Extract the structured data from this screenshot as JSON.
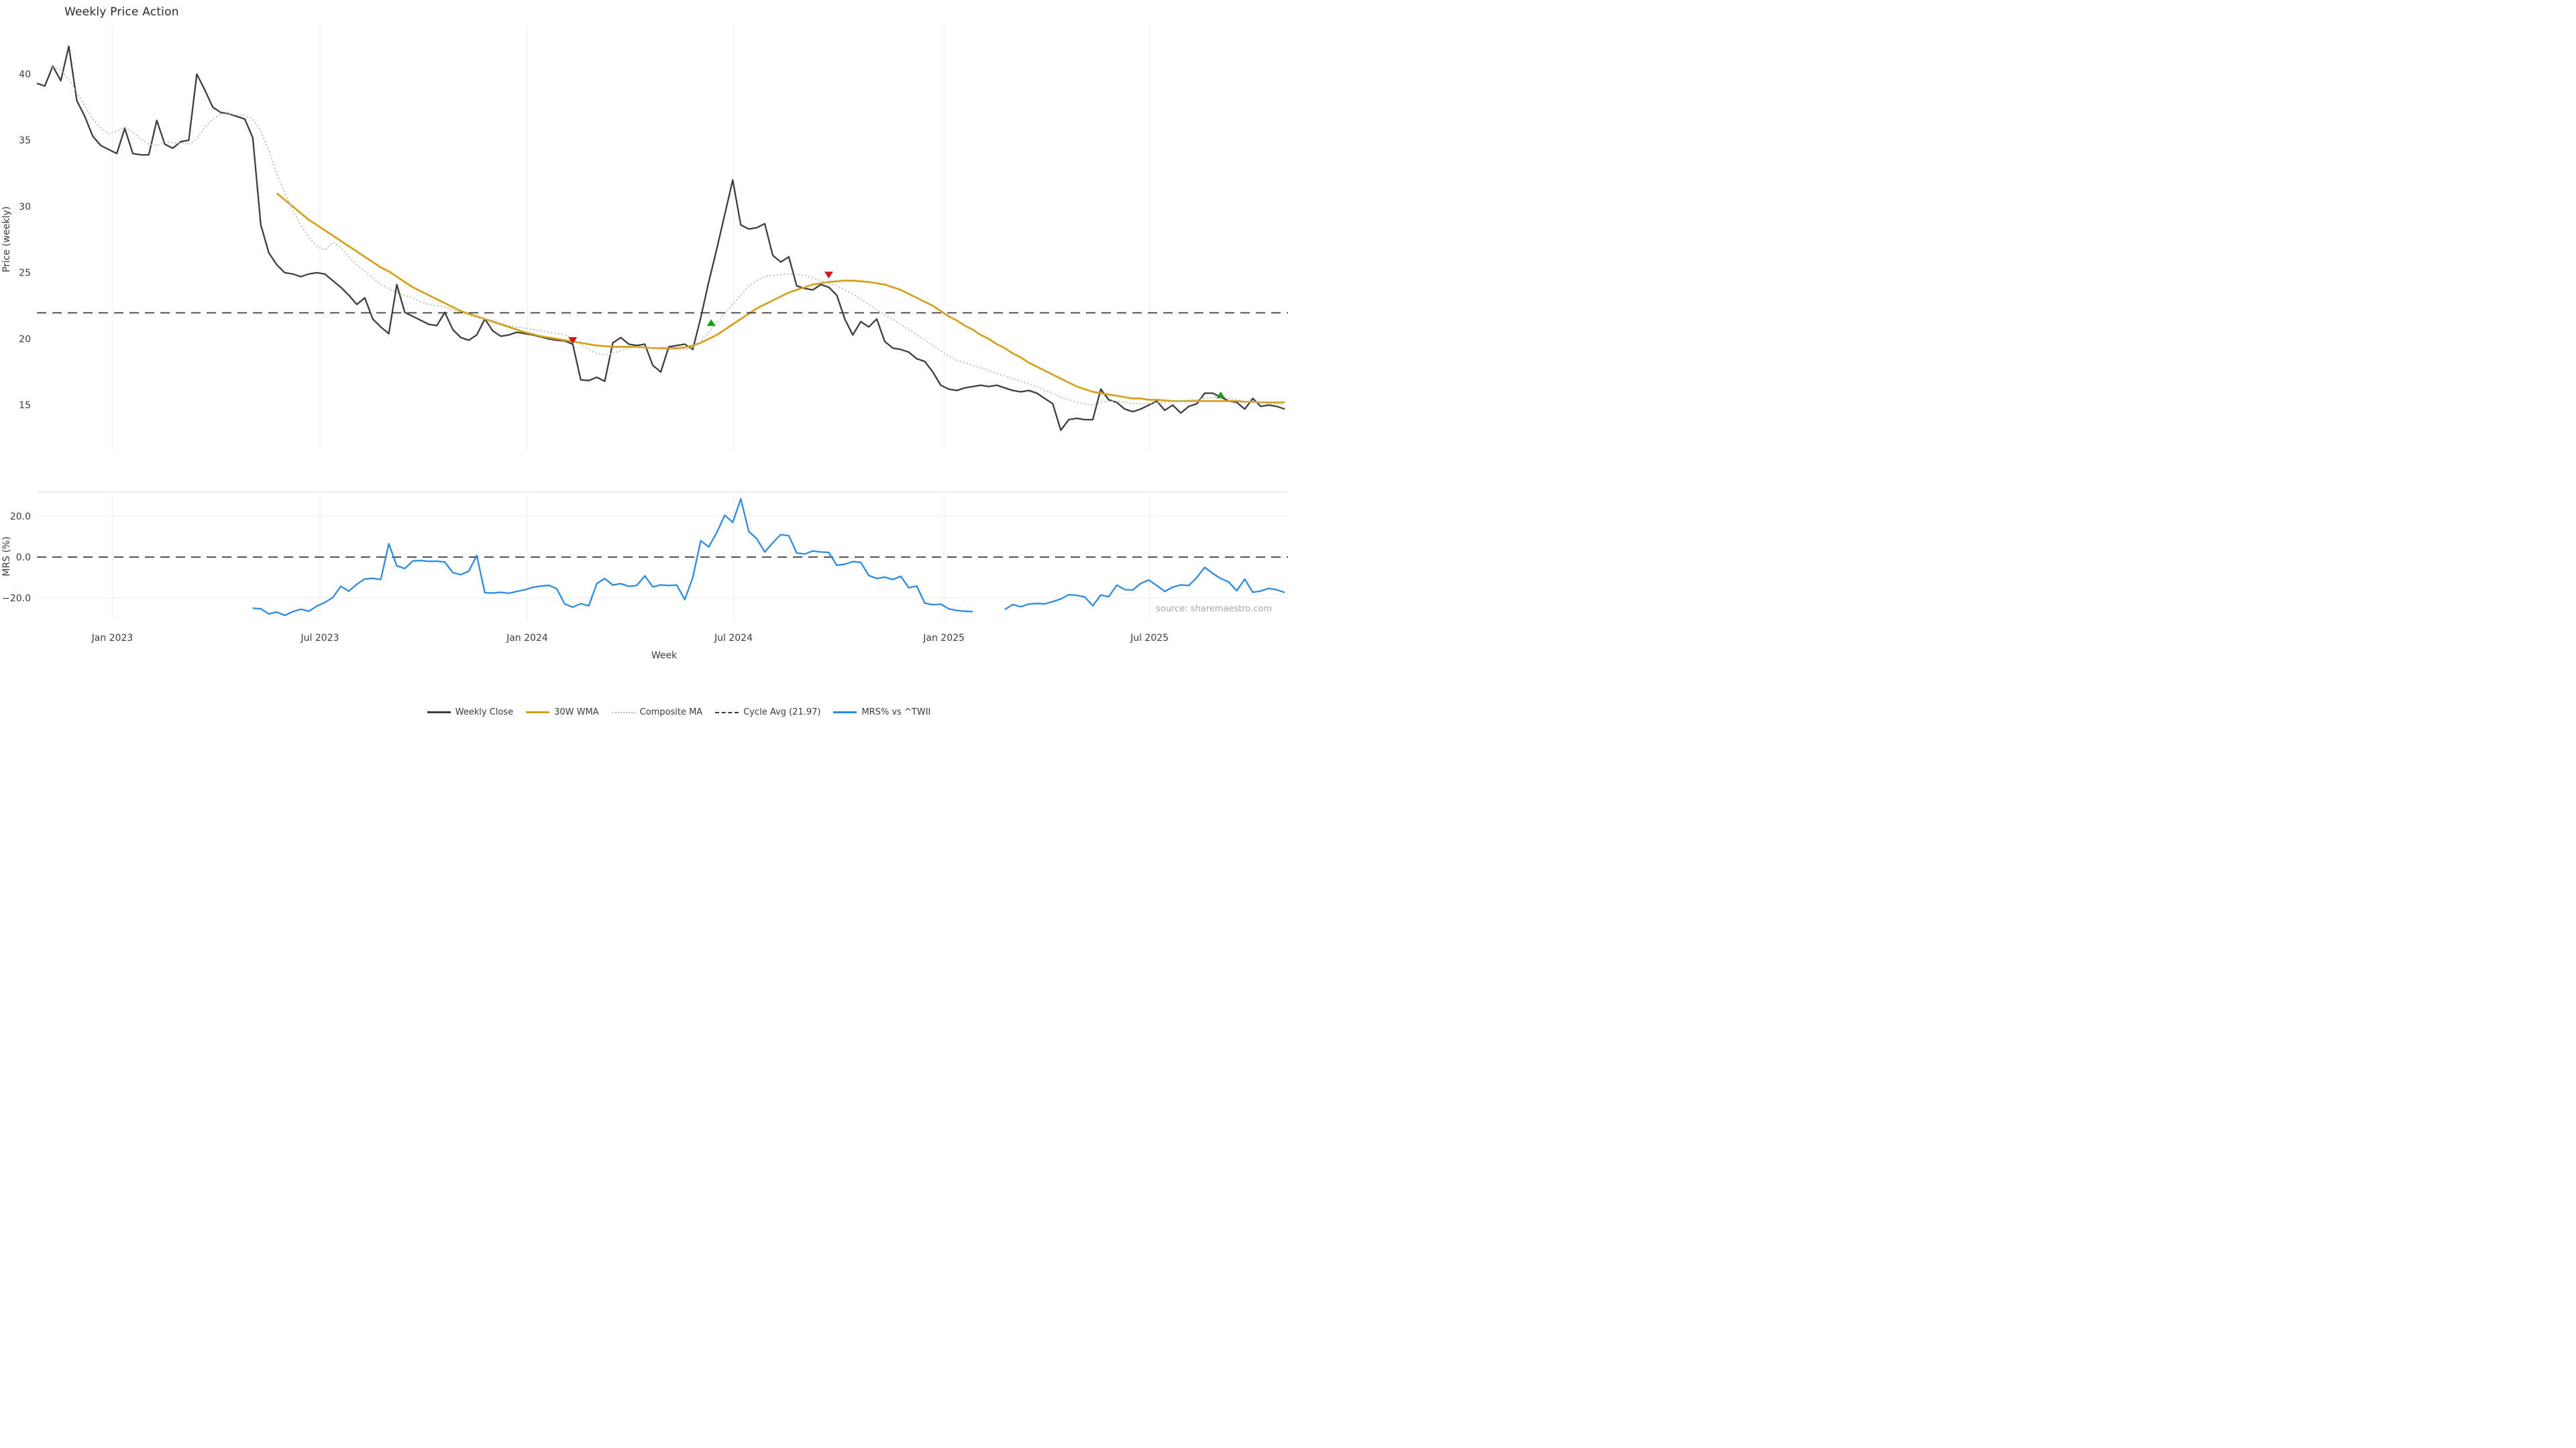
{
  "title": "Weekly Price Action",
  "source_note": "source: sharemaestro.com",
  "colors": {
    "close": "#3d3d3d",
    "wma": "#d4a017",
    "composite": "#b9b9b9",
    "cycle": "#3a3a3a",
    "mrs": "#2e8be0",
    "buy": "#13a113",
    "sell": "#cf1517",
    "grid": "#f0f0f4",
    "grid_strong": "#e4e4ea",
    "tick_text": "#3c3c3c",
    "source_text": "#a6a6a6"
  },
  "x_axis": {
    "label": "Week",
    "ticks": [
      {
        "week": 11.45,
        "label": "Jan 2023"
      },
      {
        "week": 37.4,
        "label": "Jul 2023"
      },
      {
        "week": 63.3,
        "label": "Jan 2024"
      },
      {
        "week": 89.1,
        "label": "Jul 2024"
      },
      {
        "week": 115.4,
        "label": "Jan 2025"
      },
      {
        "week": 141.1,
        "label": "Jul 2025"
      }
    ]
  },
  "chart_data": [
    {
      "type": "line",
      "id": "price",
      "title": "Weekly Price Action",
      "ylabel": "Price (weekly)",
      "ylim": [
        11.5,
        43.6
      ],
      "yticks": [
        {
          "value": 40,
          "label": "40"
        },
        {
          "value": 35,
          "label": "35"
        },
        {
          "value": 30,
          "label": "30"
        },
        {
          "value": 25,
          "label": "25"
        },
        {
          "value": 20,
          "label": "20"
        },
        {
          "value": 15,
          "label": "15"
        }
      ],
      "cycle_avg": {
        "label": "Cycle Avg (21.97)",
        "value": 21.97
      },
      "series": [
        {
          "id": "close",
          "name": "Weekly Close",
          "style": "solid",
          "start_week": 2,
          "values": [
            39.3,
            39.1,
            40.6,
            39.5,
            42.1,
            38.0,
            36.8,
            35.3,
            34.6,
            34.3,
            34.0,
            35.9,
            34.0,
            33.9,
            33.9,
            36.5,
            34.7,
            34.4,
            34.9,
            35.0,
            40.0,
            38.8,
            37.5,
            37.1,
            37.0,
            36.8,
            36.6,
            35.2,
            28.6,
            26.5,
            25.6,
            25.0,
            24.9,
            24.7,
            24.9,
            25.0,
            24.9,
            24.4,
            23.9,
            23.3,
            22.6,
            23.1,
            21.5,
            20.9,
            20.4,
            24.1,
            22.0,
            21.7,
            21.4,
            21.1,
            21.0,
            22.0,
            20.7,
            20.1,
            19.9,
            20.3,
            21.5,
            20.6,
            20.2,
            20.3,
            20.5,
            20.4,
            20.3,
            20.15,
            20.0,
            19.9,
            19.85,
            19.6,
            16.9,
            16.85,
            17.1,
            16.8,
            19.7,
            20.1,
            19.6,
            19.5,
            19.6,
            18.0,
            17.5,
            19.4,
            19.5,
            19.6,
            19.2,
            21.6,
            24.3,
            26.8,
            29.4,
            32.0,
            28.6,
            28.3,
            28.4,
            28.7,
            26.3,
            25.8,
            26.2,
            24.0,
            23.8,
            23.7,
            24.1,
            23.9,
            23.3,
            21.5,
            20.3,
            21.3,
            20.9,
            21.5,
            19.8,
            19.3,
            19.2,
            19.0,
            18.5,
            18.3,
            17.5,
            16.5,
            16.2,
            16.1,
            16.3,
            16.4,
            16.5,
            16.4,
            16.5,
            16.3,
            16.1,
            16.0,
            16.1,
            15.9,
            15.5,
            15.1,
            13.1,
            13.9,
            14.0,
            13.9,
            13.9,
            16.2,
            15.4,
            15.2,
            14.7,
            14.5,
            14.7,
            15.0,
            15.3,
            14.6,
            15.0,
            14.4,
            14.9,
            15.1,
            15.9,
            15.9,
            15.6,
            15.3,
            15.2,
            14.7,
            15.5,
            14.9,
            15.0,
            14.9,
            14.7
          ]
        },
        {
          "id": "wma",
          "name": "30W WMA",
          "style": "solid",
          "start_week": 32,
          "values": [
            31.0,
            30.5,
            30.0,
            29.5,
            29.0,
            28.6,
            28.2,
            27.8,
            27.4,
            27.0,
            26.6,
            26.2,
            25.8,
            25.4,
            25.1,
            24.7,
            24.3,
            23.9,
            23.6,
            23.3,
            23.0,
            22.7,
            22.4,
            22.1,
            21.9,
            21.7,
            21.5,
            21.3,
            21.1,
            20.9,
            20.7,
            20.5,
            20.35,
            20.2,
            20.1,
            20.0,
            19.9,
            19.8,
            19.7,
            19.6,
            19.5,
            19.45,
            19.4,
            19.4,
            19.4,
            19.4,
            19.35,
            19.3,
            19.3,
            19.3,
            19.3,
            19.35,
            19.5,
            19.7,
            20.0,
            20.3,
            20.7,
            21.1,
            21.5,
            21.9,
            22.3,
            22.6,
            22.9,
            23.2,
            23.5,
            23.7,
            23.9,
            24.1,
            24.2,
            24.3,
            24.35,
            24.4,
            24.4,
            24.35,
            24.3,
            24.2,
            24.1,
            23.9,
            23.7,
            23.4,
            23.1,
            22.8,
            22.5,
            22.1,
            21.7,
            21.4,
            21.0,
            20.7,
            20.3,
            20.0,
            19.6,
            19.3,
            18.9,
            18.6,
            18.2,
            17.9,
            17.6,
            17.3,
            17.0,
            16.7,
            16.4,
            16.2,
            16.0,
            15.9,
            15.8,
            15.7,
            15.6,
            15.5,
            15.5,
            15.4,
            15.4,
            15.35,
            15.3,
            15.3,
            15.3,
            15.3,
            15.3,
            15.3,
            15.3,
            15.3,
            15.3,
            15.25,
            15.25,
            15.2,
            15.2,
            15.2,
            15.2
          ]
        },
        {
          "id": "composite",
          "name": "Composite MA",
          "style": "dotted",
          "start_week": 4,
          "values": [
            40.5,
            40.3,
            39.6,
            38.6,
            37.6,
            36.6,
            35.9,
            35.5,
            35.7,
            36.0,
            35.6,
            35.1,
            34.7,
            34.6,
            34.9,
            34.8,
            34.8,
            34.7,
            35.1,
            36.0,
            36.6,
            37.0,
            37.0,
            36.9,
            36.9,
            36.6,
            35.7,
            34.2,
            32.5,
            31.0,
            29.7,
            28.6,
            27.7,
            27.0,
            26.7,
            27.3,
            26.9,
            26.2,
            25.6,
            25.1,
            24.6,
            24.1,
            23.8,
            23.5,
            23.3,
            23.1,
            22.8,
            22.6,
            22.5,
            22.4,
            22.2,
            22.0,
            21.8,
            21.6,
            21.5,
            21.4,
            21.2,
            21.0,
            20.9,
            20.8,
            20.7,
            20.6,
            20.5,
            20.4,
            20.3,
            20.0,
            19.6,
            19.2,
            18.9,
            18.8,
            18.9,
            19.1,
            19.3,
            19.4,
            19.4,
            19.3,
            19.2,
            19.2,
            19.2,
            19.2,
            19.3,
            19.8,
            20.5,
            21.2,
            21.9,
            22.6,
            23.3,
            24.0,
            24.4,
            24.7,
            24.8,
            24.85,
            24.9,
            24.85,
            24.8,
            24.6,
            24.4,
            24.2,
            24.0,
            23.7,
            23.4,
            23.0,
            22.6,
            22.2,
            21.8,
            21.5,
            21.1,
            20.7,
            20.3,
            19.9,
            19.5,
            19.1,
            18.7,
            18.4,
            18.2,
            18.0,
            17.8,
            17.6,
            17.4,
            17.2,
            17.0,
            16.8,
            16.6,
            16.4,
            16.1,
            15.9,
            15.6,
            15.4,
            15.2,
            15.1,
            15.0,
            15.2,
            15.3,
            15.3,
            15.2,
            15.1,
            15.1,
            15.1,
            15.2,
            15.2,
            15.3,
            15.3,
            15.4,
            15.4,
            15.5,
            15.6,
            15.6,
            15.5,
            15.4,
            15.3,
            15.2,
            15.2,
            15.1,
            15.1,
            15.0
          ]
        }
      ],
      "markers": [
        {
          "type": "sell",
          "week": 69,
          "value": 19.9
        },
        {
          "type": "buy",
          "week": 86.3,
          "value": 21.2
        },
        {
          "type": "sell",
          "week": 101,
          "value": 24.85
        },
        {
          "type": "buy",
          "week": 150,
          "value": 15.75
        }
      ]
    },
    {
      "type": "line",
      "id": "mrs",
      "ylabel": "MRS (%)",
      "ylim": [
        -31.1,
        31.8
      ],
      "yticks": [
        {
          "value": 20,
          "label": "20.0"
        },
        {
          "value": 0,
          "label": "0.0"
        },
        {
          "value": -20,
          "label": "−20.0"
        }
      ],
      "zero_line_dashed": true,
      "series": [
        {
          "id": "mrs",
          "name": "MRS% vs ^TWII",
          "style": "solid",
          "segments": [
            {
              "start_week": 29,
              "values": [
                -25.0,
                -25.3,
                -27.8,
                -26.9,
                -28.5,
                -26.7,
                -25.5,
                -26.5,
                -24.0,
                -22.2,
                -19.8,
                -14.3,
                -16.7,
                -13.3,
                -10.7,
                -10.4,
                -11.0,
                6.5,
                -4.3,
                -5.6,
                -1.9,
                -1.7,
                -2.1,
                -2.0,
                -2.4,
                -7.6,
                -8.6,
                -6.9,
                0.8,
                -17.4,
                -17.6,
                -17.2,
                -17.7,
                -16.8,
                -16.0,
                -14.8,
                -14.2,
                -13.8,
                -15.5,
                -23.0,
                -24.5,
                -22.8,
                -23.8,
                -13.0,
                -10.5,
                -13.7,
                -13.0,
                -14.3,
                -13.9,
                -9.2,
                -14.6,
                -13.6,
                -13.9,
                -13.7,
                -20.8,
                -10.0,
                8.0,
                5.0,
                12.0,
                20.5,
                17.0,
                28.5,
                12.5,
                9.0,
                2.5,
                7.0,
                11.0,
                10.5,
                2.0,
                1.5,
                3.0,
                2.5,
                2.3,
                -4.0,
                -3.5,
                -2.2,
                -2.6,
                -9.0,
                -10.5,
                -9.8,
                -11.0,
                -9.4,
                -15.0,
                -14.2,
                -22.5,
                -23.3,
                -23.0,
                -25.3,
                -26.1,
                -26.5,
                -26.7
              ]
            },
            {
              "start_week": 123,
              "values": [
                -25.6,
                -23.2,
                -24.3,
                -23.0,
                -22.7,
                -22.9,
                -21.8,
                -20.5,
                -18.4,
                -18.7,
                -19.5,
                -23.8,
                -18.6,
                -19.4,
                -13.7,
                -15.9,
                -16.1,
                -12.9,
                -11.2,
                -13.9,
                -16.8,
                -14.7,
                -13.6,
                -13.9,
                -10.0,
                -5.0,
                -8.0,
                -10.5,
                -12.2,
                -16.5,
                -10.8,
                -17.2,
                -16.6,
                -15.3,
                -16.0,
                -17.3
              ]
            }
          ]
        }
      ]
    }
  ],
  "legend": {
    "items": [
      {
        "label": "Weekly Close",
        "swatch": "solid",
        "color_key": "close"
      },
      {
        "label": "30W WMA",
        "swatch": "solid",
        "color_key": "wma"
      },
      {
        "label": "Composite MA",
        "swatch": "dotted",
        "color_key": "composite"
      },
      {
        "label": "Cycle Avg (21.97)",
        "swatch": "dashed",
        "color_key": "cycle"
      },
      {
        "label": "MRS% vs ^TWII",
        "swatch": "solid",
        "color_key": "mrs"
      }
    ]
  }
}
